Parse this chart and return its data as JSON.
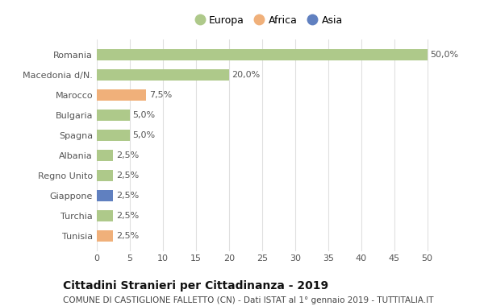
{
  "categories": [
    "Romania",
    "Macedonia d/N.",
    "Marocco",
    "Bulgaria",
    "Spagna",
    "Albania",
    "Regno Unito",
    "Giappone",
    "Turchia",
    "Tunisia"
  ],
  "values": [
    50.0,
    20.0,
    7.5,
    5.0,
    5.0,
    2.5,
    2.5,
    2.5,
    2.5,
    2.5
  ],
  "labels": [
    "50,0%",
    "20,0%",
    "7,5%",
    "5,0%",
    "5,0%",
    "2,5%",
    "2,5%",
    "2,5%",
    "2,5%",
    "2,5%"
  ],
  "continents": [
    "Europa",
    "Europa",
    "Africa",
    "Europa",
    "Europa",
    "Europa",
    "Europa",
    "Asia",
    "Europa",
    "Africa"
  ],
  "colors": {
    "Europa": "#aec98a",
    "Africa": "#f0b07a",
    "Asia": "#6080c0"
  },
  "legend_labels": [
    "Europa",
    "Africa",
    "Asia"
  ],
  "xlim": [
    0,
    52
  ],
  "xticks": [
    0,
    5,
    10,
    15,
    20,
    25,
    30,
    35,
    40,
    45,
    50
  ],
  "title": "Cittadini Stranieri per Cittadinanza - 2019",
  "subtitle": "COMUNE DI CASTIGLIONE FALLETTO (CN) - Dati ISTAT al 1° gennaio 2019 - TUTTITALIA.IT",
  "background_color": "#ffffff",
  "bar_height": 0.55,
  "title_fontsize": 10,
  "subtitle_fontsize": 7.5,
  "label_fontsize": 8,
  "tick_fontsize": 8,
  "legend_fontsize": 9,
  "grid_color": "#e0e0e0"
}
